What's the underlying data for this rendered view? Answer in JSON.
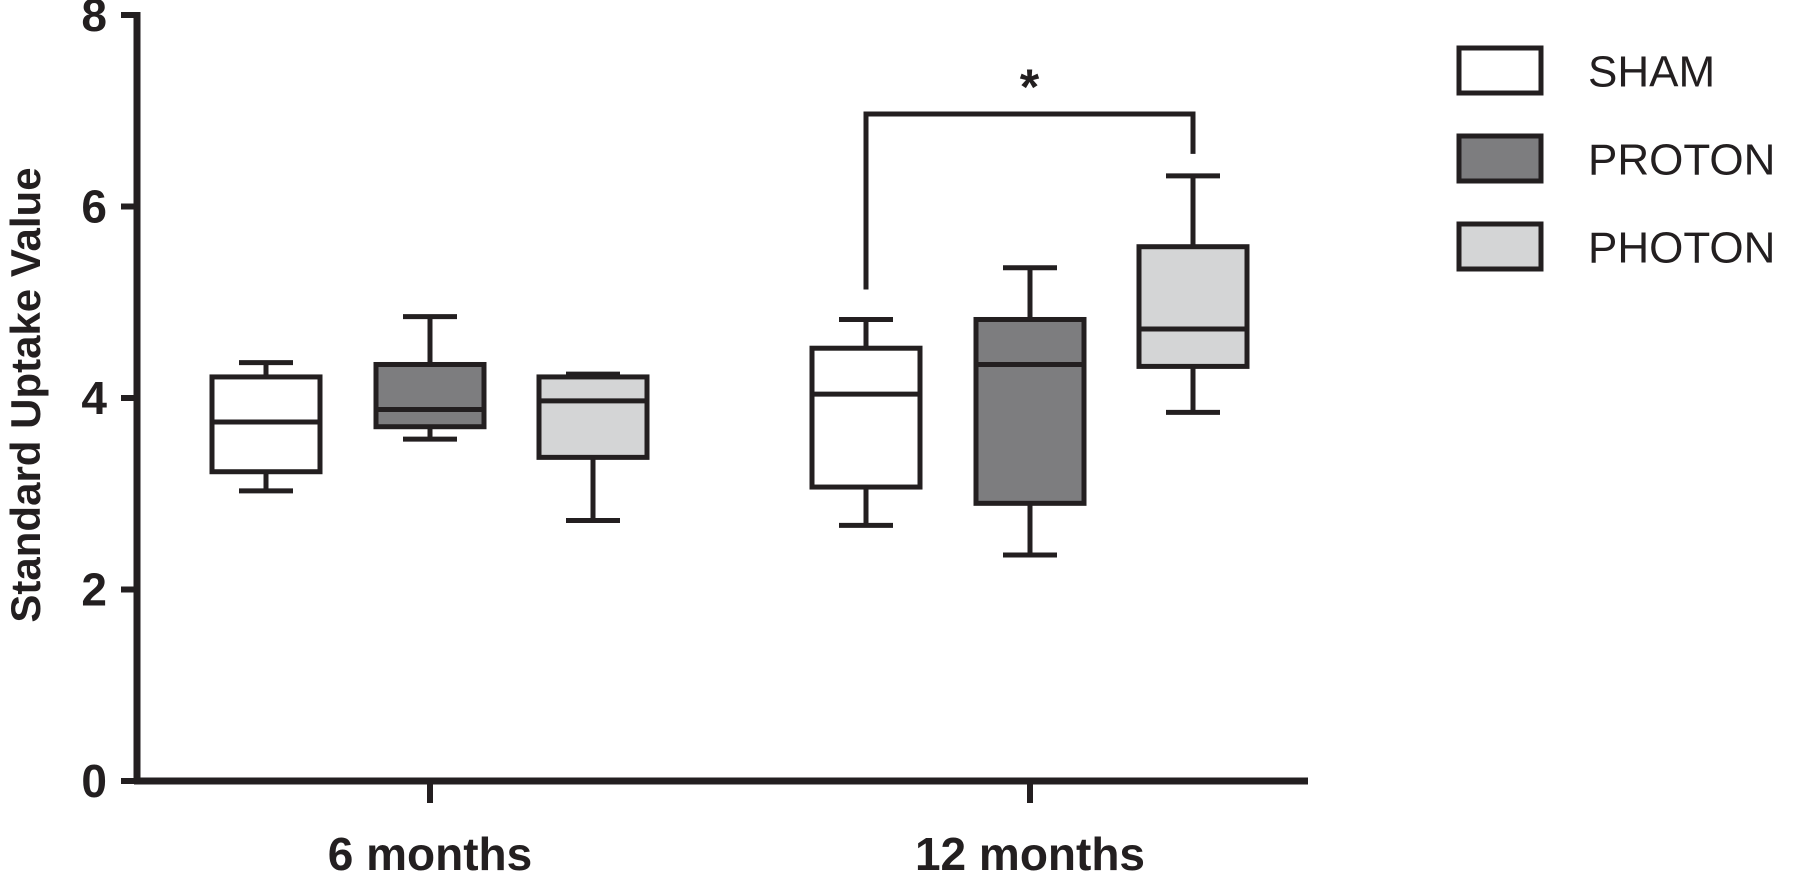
{
  "chart_data": {
    "type": "box",
    "title": "",
    "xlabel": "",
    "ylabel": "Standard Uptake Value",
    "ylim": [
      0,
      8
    ],
    "yticks": [
      0,
      2,
      4,
      6,
      8
    ],
    "categories": [
      "6 months",
      "12 months"
    ],
    "legend_position": "top-right",
    "grid": false,
    "series": [
      {
        "name": "SHAM",
        "color": "#ffffff",
        "boxes": [
          {
            "min": 3.03,
            "q1": 3.23,
            "median": 3.75,
            "q3": 4.22,
            "max": 4.37
          },
          {
            "min": 2.67,
            "q1": 3.07,
            "median": 4.04,
            "q3": 4.52,
            "max": 4.82
          }
        ]
      },
      {
        "name": "PROTON",
        "color": "#7d7d7f",
        "boxes": [
          {
            "min": 3.57,
            "q1": 3.7,
            "median": 3.88,
            "q3": 4.35,
            "max": 4.85
          },
          {
            "min": 2.36,
            "q1": 2.9,
            "median": 4.35,
            "q3": 4.82,
            "max": 5.36
          }
        ]
      },
      {
        "name": "PHOTON",
        "color": "#d4d5d6",
        "boxes": [
          {
            "min": 2.72,
            "q1": 3.38,
            "median": 3.97,
            "q3": 4.22,
            "max": 4.25
          },
          {
            "min": 3.85,
            "q1": 4.33,
            "median": 4.72,
            "q3": 5.58,
            "max": 6.32
          }
        ]
      }
    ],
    "annotations": [
      {
        "type": "significance_bracket",
        "label": "*",
        "category": "12 months",
        "between": [
          "SHAM",
          "PHOTON"
        ]
      }
    ]
  }
}
